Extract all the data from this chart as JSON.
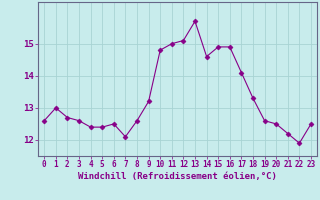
{
  "x": [
    0,
    1,
    2,
    3,
    4,
    5,
    6,
    7,
    8,
    9,
    10,
    11,
    12,
    13,
    14,
    15,
    16,
    17,
    18,
    19,
    20,
    21,
    22,
    23
  ],
  "y": [
    12.6,
    13.0,
    12.7,
    12.6,
    12.4,
    12.4,
    12.5,
    12.1,
    12.6,
    13.2,
    14.8,
    15.0,
    15.1,
    15.7,
    14.6,
    14.9,
    14.9,
    14.1,
    13.3,
    12.6,
    12.5,
    12.2,
    11.9,
    12.5
  ],
  "line_color": "#880088",
  "marker": "D",
  "marker_size": 2.5,
  "xlabel": "Windchill (Refroidissement éolien,°C)",
  "ylim": [
    11.5,
    16.3
  ],
  "yticks": [
    12,
    13,
    14,
    15
  ],
  "xticks": [
    0,
    1,
    2,
    3,
    4,
    5,
    6,
    7,
    8,
    9,
    10,
    11,
    12,
    13,
    14,
    15,
    16,
    17,
    18,
    19,
    20,
    21,
    22,
    23
  ],
  "xtick_labels": [
    "0",
    "1",
    "2",
    "3",
    "4",
    "5",
    "6",
    "7",
    "8",
    "9",
    "10",
    "11",
    "12",
    "13",
    "14",
    "15",
    "16",
    "17",
    "18",
    "19",
    "20",
    "21",
    "22",
    "23"
  ],
  "background_color": "#c8ecec",
  "grid_color": "#a8d4d4",
  "font_color": "#880088",
  "spine_color": "#666688"
}
